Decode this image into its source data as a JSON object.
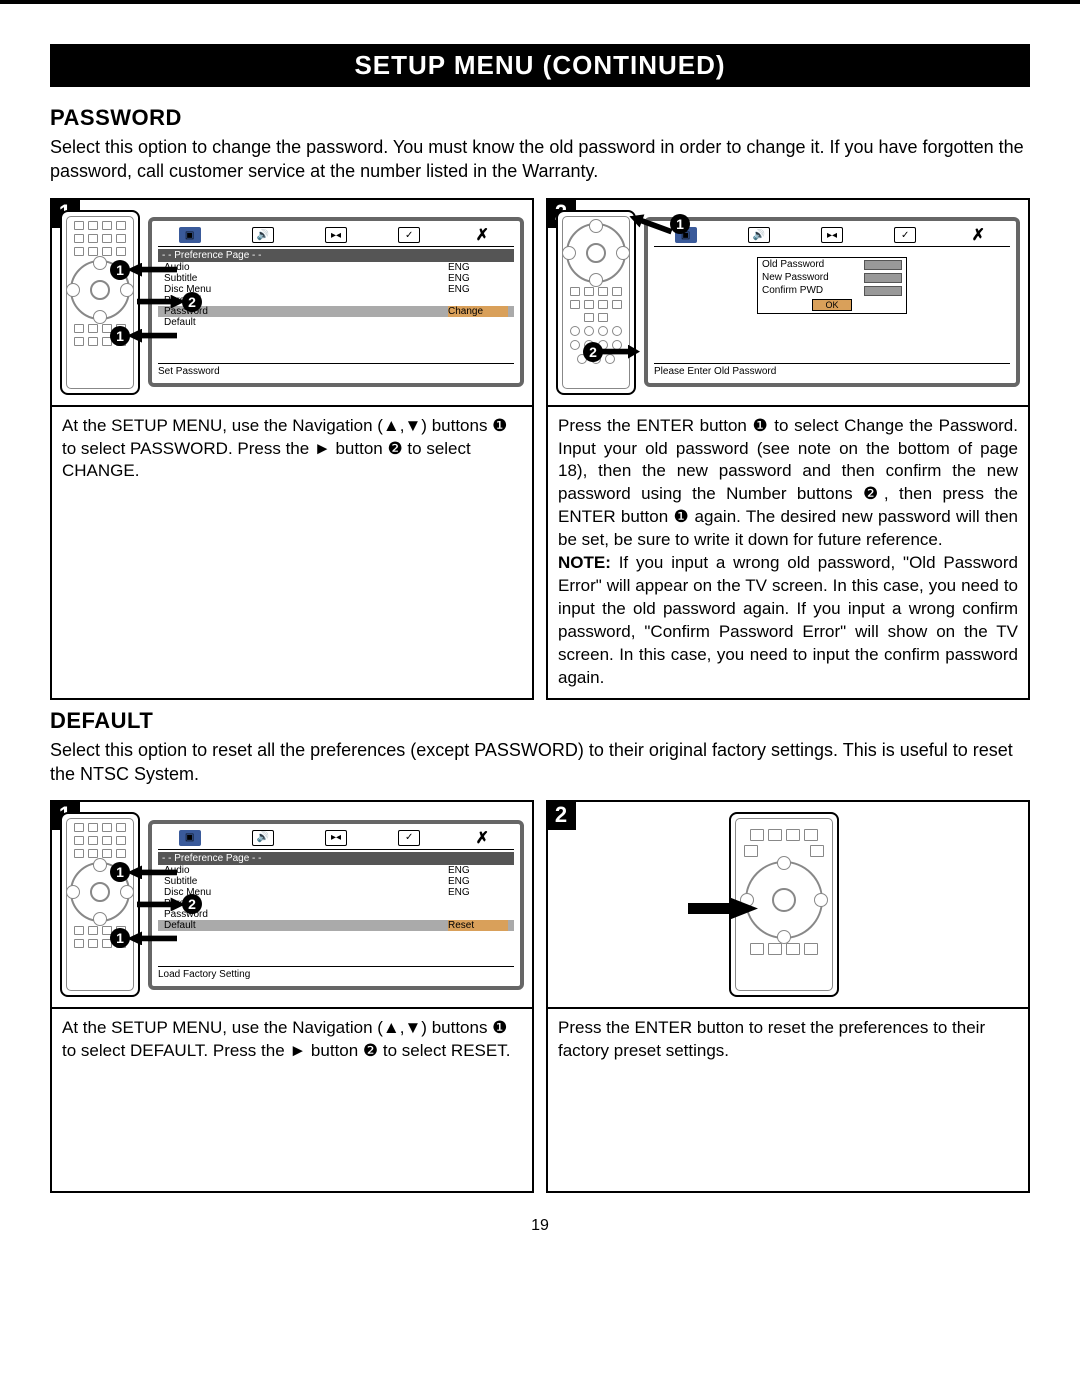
{
  "banner": "SETUP MENU (CONTINUED)",
  "password": {
    "title": "PASSWORD",
    "desc": "Select this option to change the password. You must know the old password in order to change it. If you have forgotten the password, call customer service at the number listed in the Warranty.",
    "step1": {
      "num": "1",
      "caption": "At the SETUP MENU, use the Navigation (▲,▼) buttons ❶ to select PASSWORD. Press the ► button ❷ to select CHANGE.",
      "osd": {
        "header": "- - Preference Page - -",
        "rows": [
          {
            "l": "Audio",
            "r": "ENG",
            "hl": false
          },
          {
            "l": "Subtitle",
            "r": "ENG",
            "hl": false
          },
          {
            "l": "Disc Menu",
            "r": "ENG",
            "hl": false
          },
          {
            "l": "Parental",
            "r": "",
            "hl": false
          },
          {
            "l": "Password",
            "r": "Change",
            "hl": true,
            "rhl": true
          },
          {
            "l": "Default",
            "r": "",
            "hl": false
          }
        ],
        "footer": "Set Password"
      }
    },
    "step2": {
      "num": "2",
      "caption": "Press the ENTER button ❶ to select Change the Password. Input your old password (see note on the bottom of page 18), then the new password and then  confirm the new password using the Number buttons ❷, then press the ENTER button ❶ again. The desired new password will then be set, be sure to write it down for future reference.",
      "note_label": "NOTE:",
      "note": " If you input a wrong old password, \"Old Password Error\"  will appear on the TV screen. In this case, you need to input the old password again. If you  input a wrong confirm password, \"Confirm Password Error\" will show on the TV screen. In this case, you need to input the confirm password again.",
      "osd": {
        "old": "Old Password",
        "new": "New Password",
        "confirm": "Confirm PWD",
        "ok": "OK",
        "footer": "Please Enter Old Password"
      }
    }
  },
  "default": {
    "title": "DEFAULT",
    "desc": "Select this option to reset all the preferences (except PASSWORD) to their original factory settings. This is useful to reset the NTSC System.",
    "step1": {
      "num": "1",
      "caption": "At the SETUP MENU, use the Navigation (▲,▼) buttons ❶ to select DEFAULT. Press the ► button ❷ to select RESET.",
      "osd": {
        "header": "- - Preference Page - -",
        "rows": [
          {
            "l": "Audio",
            "r": "ENG",
            "hl": false
          },
          {
            "l": "Subtitle",
            "r": "ENG",
            "hl": false
          },
          {
            "l": "Disc Menu",
            "r": "ENG",
            "hl": false
          },
          {
            "l": "Parental",
            "r": "",
            "hl": false
          },
          {
            "l": "Password",
            "r": "",
            "hl": false
          },
          {
            "l": "Default",
            "r": "Reset",
            "hl": true,
            "rhl": true
          }
        ],
        "footer": "Load Factory Setting"
      }
    },
    "step2": {
      "num": "2",
      "caption": "Press the ENTER button to reset the preferences to their factory preset settings."
    }
  },
  "pagenum": "19",
  "arrows": {
    "a1": "1",
    "a2": "2"
  }
}
